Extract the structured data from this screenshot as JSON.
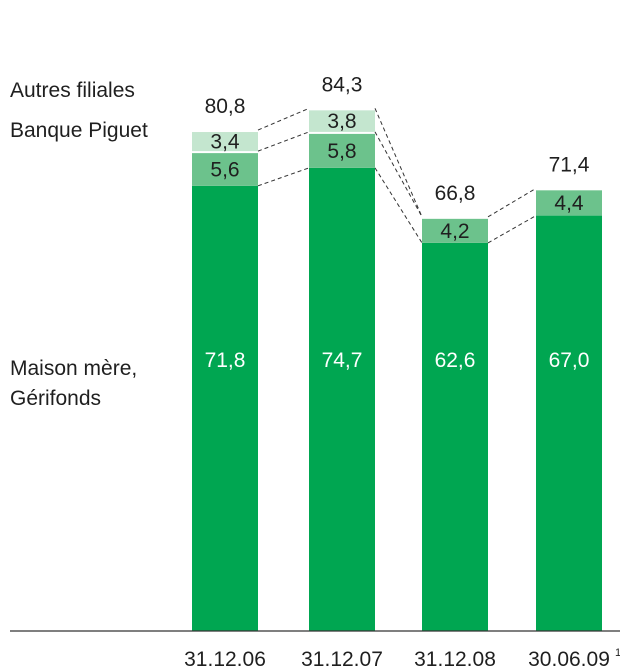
{
  "chart_data": {
    "type": "bar",
    "stacked": true,
    "categories": [
      "31.12.06",
      "31.12.07",
      "31.12.08",
      "30.06.09"
    ],
    "category_footnotes": [
      "",
      "",
      "",
      "1)"
    ],
    "series": [
      {
        "name": "Maison mère, Gérifonds",
        "values": [
          71.8,
          74.7,
          62.6,
          67.0
        ],
        "labels": [
          "71,8",
          "74,7",
          "62,6",
          "67,0"
        ],
        "color": "#00a651",
        "label_color": "#ffffff"
      },
      {
        "name": "Banque Piguet",
        "values": [
          5.6,
          5.8,
          4.2,
          4.4
        ],
        "labels": [
          "5,6",
          "5,8",
          "4,2",
          "4,4"
        ],
        "color": "#6cc28c",
        "label_color": "#1f1f1f"
      },
      {
        "name": "Autres filiales",
        "values": [
          3.4,
          3.8,
          null,
          null
        ],
        "labels": [
          "3,4",
          "3,8",
          "",
          ""
        ],
        "color": "#c4e6cf",
        "label_color": "#1f1f1f"
      }
    ],
    "totals": [
      "80,8",
      "84,3",
      "66,8",
      "71,4"
    ],
    "legend_lines": [
      {
        "text": "Autres filiales",
        "series": 2
      },
      {
        "text": "Banque Piguet",
        "series": 1
      },
      {
        "text": "Maison mère,",
        "series": 0
      },
      {
        "text": "Gérifonds",
        "series": 0
      }
    ],
    "legend_placement": "left",
    "connectors": "dashed",
    "ylim": [
      0,
      90
    ],
    "grid": false
  }
}
